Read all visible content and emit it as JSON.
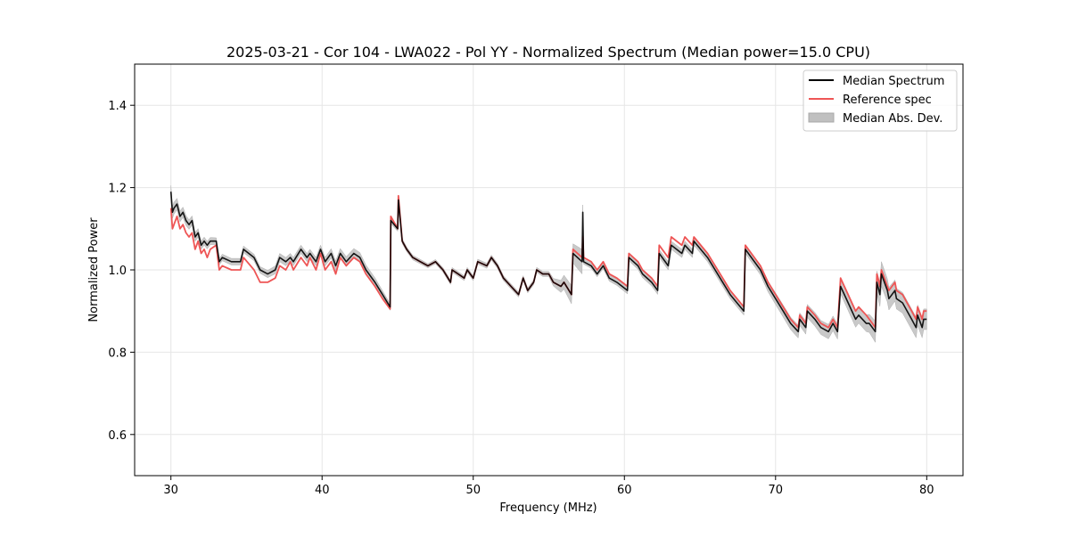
{
  "chart_data": {
    "type": "line",
    "title": "2025-03-21 - Cor 104 - LWA022 - Pol YY - Normalized Spectrum (Median power=15.0 CPU)",
    "xlabel": "Frequency (MHz)",
    "ylabel": "Normalized Power",
    "xlim": [
      27.6,
      82.4
    ],
    "ylim": [
      0.5,
      1.5
    ],
    "xticks": [
      30,
      40,
      50,
      60,
      70,
      80
    ],
    "yticks": [
      0.6,
      0.8,
      1.0,
      1.2,
      1.4
    ],
    "grid": true,
    "legend_position": "top-right",
    "colors": {
      "median": "#000000",
      "reference": "#ee5555",
      "mad_fill": "#c0c0c0",
      "grid": "#e6e6e6"
    },
    "series": [
      {
        "name": "Median Spectrum",
        "x": [
          30.0,
          30.1,
          30.2,
          30.4,
          30.6,
          30.8,
          31.0,
          31.2,
          31.4,
          31.6,
          31.8,
          32.0,
          32.2,
          32.4,
          32.6,
          33.0,
          33.2,
          33.4,
          34.0,
          34.6,
          34.8,
          35.5,
          35.9,
          36.4,
          36.9,
          37.2,
          37.6,
          37.9,
          38.1,
          38.6,
          39.0,
          39.2,
          39.6,
          39.9,
          40.2,
          40.6,
          40.9,
          41.2,
          41.6,
          42.1,
          42.5,
          42.9,
          43.5,
          44.0,
          44.5,
          44.55,
          45.0,
          45.05,
          45.3,
          45.6,
          46.0,
          46.5,
          47.0,
          47.5,
          48.0,
          48.5,
          48.6,
          49.0,
          49.4,
          49.6,
          50.0,
          50.3,
          50.9,
          51.2,
          51.6,
          52.0,
          52.5,
          53.0,
          53.3,
          53.6,
          54.0,
          54.2,
          54.6,
          55.0,
          55.3,
          55.8,
          56.0,
          56.5,
          56.6,
          57.2,
          57.25,
          57.3,
          57.8,
          58.2,
          58.6,
          59.0,
          59.5,
          60.2,
          60.3,
          60.9,
          61.2,
          61.8,
          62.2,
          62.3,
          62.9,
          63.1,
          63.8,
          64.0,
          64.5,
          64.6,
          65.5,
          66.0,
          66.5,
          67.0,
          67.9,
          68.0,
          69.0,
          69.5,
          70.0,
          70.5,
          71.0,
          71.5,
          71.6,
          72.0,
          72.1,
          72.6,
          73.0,
          73.5,
          73.8,
          74.1,
          74.3,
          74.8,
          75.3,
          75.5,
          76.0,
          76.2,
          76.6,
          76.7,
          76.9,
          77.0,
          77.4,
          77.5,
          77.9,
          78.0,
          78.4,
          79.0,
          79.3,
          79.4,
          79.7,
          79.8,
          80.0
        ],
        "values": [
          1.19,
          1.14,
          1.15,
          1.16,
          1.13,
          1.14,
          1.12,
          1.11,
          1.12,
          1.08,
          1.09,
          1.06,
          1.07,
          1.06,
          1.07,
          1.07,
          1.02,
          1.03,
          1.02,
          1.02,
          1.05,
          1.03,
          1.0,
          0.99,
          1.0,
          1.03,
          1.02,
          1.03,
          1.02,
          1.05,
          1.03,
          1.04,
          1.02,
          1.05,
          1.02,
          1.04,
          1.01,
          1.04,
          1.02,
          1.04,
          1.03,
          1.0,
          0.97,
          0.94,
          0.91,
          1.12,
          1.1,
          1.17,
          1.07,
          1.05,
          1.03,
          1.02,
          1.01,
          1.02,
          1.0,
          0.97,
          1.0,
          0.99,
          0.98,
          1.0,
          0.98,
          1.02,
          1.01,
          1.03,
          1.01,
          0.98,
          0.96,
          0.94,
          0.98,
          0.95,
          0.97,
          1.0,
          0.99,
          0.99,
          0.97,
          0.96,
          0.97,
          0.94,
          1.04,
          1.02,
          1.14,
          1.02,
          1.01,
          0.99,
          1.01,
          0.98,
          0.97,
          0.95,
          1.03,
          1.01,
          0.99,
          0.97,
          0.95,
          1.04,
          1.01,
          1.06,
          1.04,
          1.06,
          1.04,
          1.07,
          1.03,
          1.0,
          0.97,
          0.94,
          0.9,
          1.05,
          1.0,
          0.96,
          0.93,
          0.9,
          0.87,
          0.85,
          0.88,
          0.86,
          0.9,
          0.88,
          0.86,
          0.85,
          0.87,
          0.85,
          0.96,
          0.92,
          0.88,
          0.89,
          0.87,
          0.87,
          0.85,
          0.97,
          0.94,
          0.99,
          0.95,
          0.93,
          0.95,
          0.93,
          0.92,
          0.88,
          0.86,
          0.89,
          0.86,
          0.88,
          0.88
        ]
      },
      {
        "name": "Reference spec",
        "x": [
          30.0,
          30.1,
          30.2,
          30.4,
          30.6,
          30.8,
          31.0,
          31.2,
          31.4,
          31.6,
          31.8,
          32.0,
          32.2,
          32.4,
          32.6,
          33.0,
          33.2,
          33.4,
          34.0,
          34.6,
          34.8,
          35.5,
          35.9,
          36.4,
          36.9,
          37.2,
          37.6,
          37.9,
          38.1,
          38.6,
          39.0,
          39.2,
          39.6,
          39.9,
          40.2,
          40.6,
          40.9,
          41.2,
          41.6,
          42.1,
          42.5,
          42.9,
          43.5,
          44.0,
          44.5,
          44.55,
          45.0,
          45.05,
          45.3,
          45.6,
          46.0,
          46.5,
          47.0,
          47.5,
          48.0,
          48.5,
          48.6,
          49.0,
          49.4,
          49.6,
          50.0,
          50.3,
          50.9,
          51.2,
          51.6,
          52.0,
          52.5,
          53.0,
          53.3,
          53.6,
          54.0,
          54.2,
          54.6,
          55.0,
          55.3,
          55.8,
          56.0,
          56.5,
          56.6,
          57.2,
          57.25,
          57.3,
          57.8,
          58.2,
          58.6,
          59.0,
          59.5,
          60.2,
          60.3,
          60.9,
          61.2,
          61.8,
          62.2,
          62.3,
          62.9,
          63.1,
          63.8,
          64.0,
          64.5,
          64.6,
          65.5,
          66.0,
          66.5,
          67.0,
          67.9,
          68.0,
          69.0,
          69.5,
          70.0,
          70.5,
          71.0,
          71.5,
          71.6,
          72.0,
          72.1,
          72.6,
          73.0,
          73.5,
          73.8,
          74.1,
          74.3,
          74.8,
          75.3,
          75.5,
          76.0,
          76.2,
          76.6,
          76.7,
          76.9,
          77.0,
          77.4,
          77.5,
          77.9,
          78.0,
          78.4,
          79.0,
          79.3,
          79.4,
          79.7,
          79.8,
          80.0
        ],
        "values": [
          1.15,
          1.1,
          1.11,
          1.13,
          1.1,
          1.11,
          1.09,
          1.08,
          1.09,
          1.05,
          1.07,
          1.04,
          1.05,
          1.03,
          1.05,
          1.06,
          1.0,
          1.01,
          1.0,
          1.0,
          1.03,
          1.0,
          0.97,
          0.97,
          0.98,
          1.01,
          1.0,
          1.02,
          1.0,
          1.03,
          1.01,
          1.03,
          1.0,
          1.04,
          1.0,
          1.02,
          0.99,
          1.03,
          1.01,
          1.03,
          1.02,
          0.99,
          0.96,
          0.93,
          0.905,
          1.13,
          1.1,
          1.18,
          1.07,
          1.05,
          1.03,
          1.02,
          1.01,
          1.02,
          1.0,
          0.97,
          1.0,
          0.99,
          0.98,
          1.0,
          0.98,
          1.02,
          1.01,
          1.03,
          1.01,
          0.98,
          0.96,
          0.94,
          0.98,
          0.95,
          0.97,
          1.0,
          0.99,
          0.99,
          0.97,
          0.96,
          0.97,
          0.94,
          1.05,
          1.03,
          1.08,
          1.03,
          1.02,
          1.0,
          1.02,
          0.99,
          0.98,
          0.96,
          1.04,
          1.02,
          1.0,
          0.98,
          0.96,
          1.06,
          1.03,
          1.08,
          1.06,
          1.08,
          1.06,
          1.08,
          1.04,
          1.01,
          0.98,
          0.95,
          0.91,
          1.06,
          1.01,
          0.97,
          0.94,
          0.91,
          0.88,
          0.86,
          0.89,
          0.87,
          0.91,
          0.89,
          0.87,
          0.86,
          0.88,
          0.86,
          0.98,
          0.94,
          0.9,
          0.91,
          0.89,
          0.88,
          0.86,
          0.99,
          0.96,
          1.0,
          0.96,
          0.95,
          0.97,
          0.95,
          0.94,
          0.9,
          0.88,
          0.91,
          0.88,
          0.9,
          0.9
        ]
      },
      {
        "name": "Median Abs. Dev.",
        "kind": "band",
        "x": [
          30.0,
          31.0,
          32.0,
          33.0,
          34.0,
          35.0,
          36.0,
          37.0,
          38.0,
          39.0,
          40.0,
          41.0,
          42.0,
          43.0,
          44.5,
          45.0,
          47.0,
          50.0,
          55.0,
          57.2,
          57.3,
          60.0,
          63.0,
          65.0,
          68.0,
          70.0,
          72.0,
          74.0,
          76.0,
          77.0,
          78.0,
          79.0,
          80.0
        ],
        "spread": [
          0.015,
          0.012,
          0.01,
          0.008,
          0.008,
          0.008,
          0.008,
          0.01,
          0.01,
          0.01,
          0.01,
          0.012,
          0.012,
          0.012,
          0.008,
          0.006,
          0.005,
          0.006,
          0.006,
          0.03,
          0.006,
          0.008,
          0.01,
          0.01,
          0.01,
          0.014,
          0.016,
          0.018,
          0.02,
          0.03,
          0.025,
          0.025,
          0.025
        ]
      }
    ]
  }
}
